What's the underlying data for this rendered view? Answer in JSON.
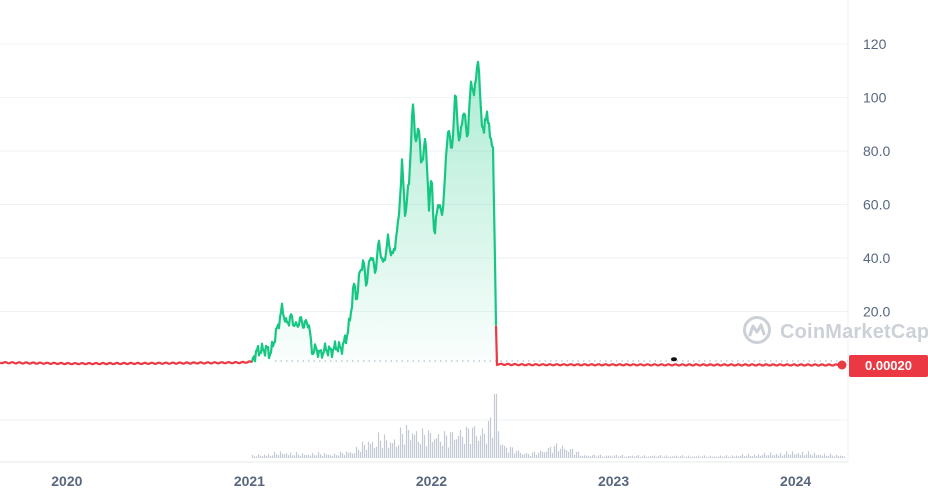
{
  "watermark": {
    "text": "CoinMarketCap",
    "icon": "coinmarketcap-logo-icon"
  },
  "price_badge": {
    "value": "0.00020"
  },
  "colors": {
    "up": "#16c784",
    "down": "#ea3943",
    "grid": "#eff2f5",
    "volume": "#c3cad6",
    "axis_text": "#58667e"
  },
  "chart_data": {
    "type": "area",
    "title": "",
    "xlabel": "",
    "ylabel": "",
    "ylim": [
      0,
      132
    ],
    "yticks": [
      {
        "value": 20,
        "label": "20.0"
      },
      {
        "value": 40,
        "label": "40.0"
      },
      {
        "value": 60,
        "label": "60.0"
      },
      {
        "value": 80,
        "label": "80.0"
      },
      {
        "value": 100,
        "label": "100"
      },
      {
        "value": 120,
        "label": "120"
      }
    ],
    "xticks": [
      {
        "date": "2020-01-01",
        "label": "2020"
      },
      {
        "date": "2021-01-01",
        "label": "2021"
      },
      {
        "date": "2022-01-01",
        "label": "2022"
      },
      {
        "date": "2023-01-01",
        "label": "2023"
      },
      {
        "date": "2024-01-01",
        "label": "2024"
      }
    ],
    "xlim": [
      "2019-08-20",
      "2024-04-15"
    ],
    "grid": true,
    "current_price": 0.0002,
    "series": [
      {
        "kind": "price",
        "points": [
          [
            "2019-08-20",
            0.9
          ],
          [
            "2020-01-15",
            0.5
          ],
          [
            "2020-06-01",
            0.6
          ],
          [
            "2020-12-15",
            0.9
          ],
          [
            "2021-01-06",
            1.2
          ],
          [
            "2021-01-15",
            5
          ],
          [
            "2021-02-05",
            6
          ],
          [
            "2021-02-12",
            4
          ],
          [
            "2021-02-28",
            15
          ],
          [
            "2021-03-08",
            21.5
          ],
          [
            "2021-03-16",
            15
          ],
          [
            "2021-03-25",
            18
          ],
          [
            "2021-04-05",
            14
          ],
          [
            "2021-04-12",
            17
          ],
          [
            "2021-04-20",
            15
          ],
          [
            "2021-04-30",
            16
          ],
          [
            "2021-05-06",
            5
          ],
          [
            "2021-05-14",
            6
          ],
          [
            "2021-05-24",
            4
          ],
          [
            "2021-06-03",
            6
          ],
          [
            "2021-06-14",
            5
          ],
          [
            "2021-06-24",
            7
          ],
          [
            "2021-07-04",
            6
          ],
          [
            "2021-07-14",
            10
          ],
          [
            "2021-07-22",
            17
          ],
          [
            "2021-07-29",
            30
          ],
          [
            "2021-08-05",
            25
          ],
          [
            "2021-08-11",
            36
          ],
          [
            "2021-08-18",
            38
          ],
          [
            "2021-08-24",
            30
          ],
          [
            "2021-09-01",
            42
          ],
          [
            "2021-09-10",
            35
          ],
          [
            "2021-09-18",
            46
          ],
          [
            "2021-09-26",
            37
          ],
          [
            "2021-10-06",
            47
          ],
          [
            "2021-10-15",
            40
          ],
          [
            "2021-10-26",
            52
          ],
          [
            "2021-11-03",
            75
          ],
          [
            "2021-11-10",
            55
          ],
          [
            "2021-11-18",
            72
          ],
          [
            "2021-11-25",
            98
          ],
          [
            "2021-12-01",
            82
          ],
          [
            "2021-12-07",
            90
          ],
          [
            "2021-12-12",
            72
          ],
          [
            "2021-12-19",
            86
          ],
          [
            "2021-12-27",
            60
          ],
          [
            "2022-01-01",
            70
          ],
          [
            "2022-01-07",
            48
          ],
          [
            "2022-01-15",
            62
          ],
          [
            "2022-01-22",
            55
          ],
          [
            "2022-01-28",
            70
          ],
          [
            "2022-02-04",
            91
          ],
          [
            "2022-02-10",
            78
          ],
          [
            "2022-02-18",
            102
          ],
          [
            "2022-02-26",
            82
          ],
          [
            "2022-03-06",
            96
          ],
          [
            "2022-03-14",
            85
          ],
          [
            "2022-03-22",
            107
          ],
          [
            "2022-03-28",
            100
          ],
          [
            "2022-04-04",
            116
          ],
          [
            "2022-04-10",
            95
          ],
          [
            "2022-04-16",
            86
          ],
          [
            "2022-04-22",
            96
          ],
          [
            "2022-04-28",
            85
          ],
          [
            "2022-05-04",
            84
          ],
          [
            "2022-05-09",
            30
          ],
          [
            "2022-05-12",
            0.3
          ],
          [
            "2022-07-01",
            0.1
          ],
          [
            "2023-01-01",
            0.08
          ],
          [
            "2023-06-01",
            0.05
          ],
          [
            "2024-01-01",
            0.02
          ],
          [
            "2024-03-25",
            0.0002
          ]
        ]
      },
      {
        "kind": "volume",
        "approximate": true,
        "points": [
          [
            "2021-01-10",
            0.05
          ],
          [
            "2021-02-20",
            0.1
          ],
          [
            "2021-03-10",
            0.12
          ],
          [
            "2021-04-20",
            0.08
          ],
          [
            "2021-05-15",
            0.1
          ],
          [
            "2021-06-20",
            0.08
          ],
          [
            "2021-07-25",
            0.15
          ],
          [
            "2021-08-20",
            0.3
          ],
          [
            "2021-09-15",
            0.45
          ],
          [
            "2021-10-10",
            0.35
          ],
          [
            "2021-11-01",
            0.55
          ],
          [
            "2021-11-25",
            0.62
          ],
          [
            "2021-12-15",
            0.5
          ],
          [
            "2022-01-10",
            0.52
          ],
          [
            "2022-02-01",
            0.45
          ],
          [
            "2022-02-20",
            0.6
          ],
          [
            "2022-03-10",
            0.55
          ],
          [
            "2022-03-28",
            0.65
          ],
          [
            "2022-04-20",
            0.58
          ],
          [
            "2022-05-09",
            1.0
          ],
          [
            "2022-05-25",
            0.25
          ],
          [
            "2022-07-15",
            0.08
          ],
          [
            "2022-09-15",
            0.28
          ],
          [
            "2022-11-01",
            0.06
          ],
          [
            "2023-02-10",
            0.05
          ],
          [
            "2023-08-01",
            0.04
          ],
          [
            "2024-01-08",
            0.12
          ],
          [
            "2024-03-20",
            0.06
          ]
        ]
      }
    ]
  }
}
